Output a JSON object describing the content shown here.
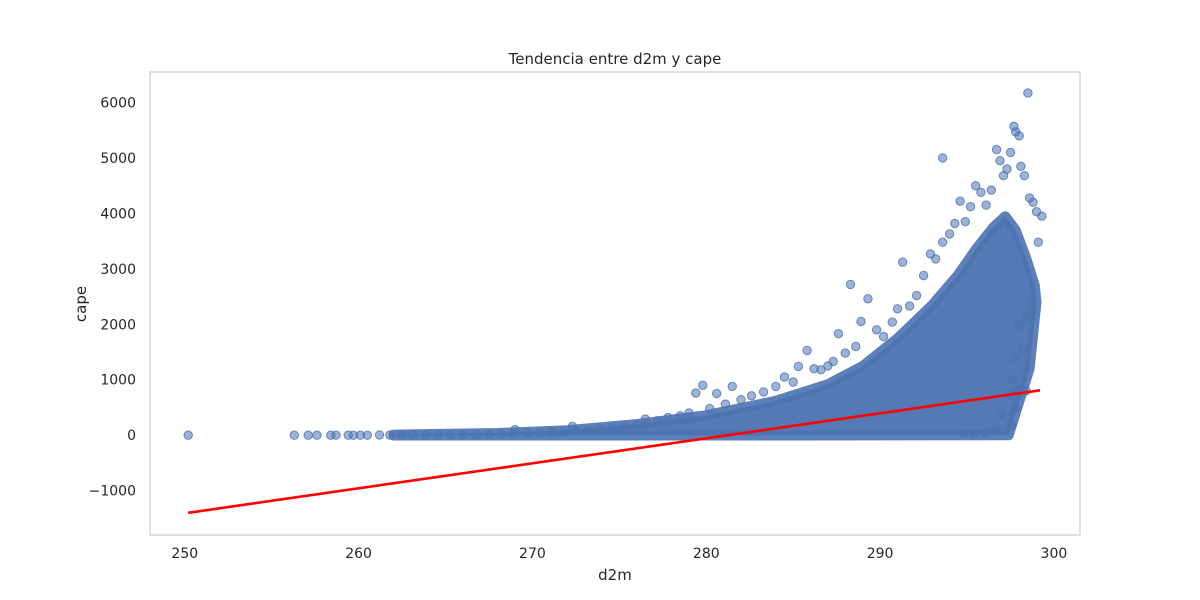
{
  "chart_data": {
    "type": "scatter",
    "title": "Tendencia entre d2m y cape",
    "xlabel": "d2m",
    "ylabel": "cape",
    "xlim": [
      248,
      301.5
    ],
    "ylim": [
      -1800,
      6550
    ],
    "xticks": [
      250,
      260,
      270,
      280,
      290,
      300
    ],
    "yticks": [
      -1000,
      0,
      1000,
      2000,
      3000,
      4000,
      5000,
      6000
    ],
    "xtick_labels": [
      "250",
      "260",
      "270",
      "280",
      "290",
      "300"
    ],
    "ytick_labels": [
      "−1000",
      "0",
      "1000",
      "2000",
      "3000",
      "4000",
      "5000",
      "6000"
    ],
    "grid": false,
    "colors": {
      "points": "#4c72b0",
      "trend": "#ff0000",
      "frame": "#cccccc",
      "text": "#262626"
    },
    "series": [
      {
        "kind": "points",
        "points": [
          [
            250.2,
            0
          ],
          [
            256.3,
            0
          ],
          [
            257.1,
            0
          ],
          [
            257.6,
            0
          ],
          [
            258.4,
            0
          ],
          [
            258.7,
            0
          ],
          [
            259.4,
            0
          ],
          [
            259.7,
            0
          ],
          [
            260.1,
            0
          ],
          [
            260.5,
            0
          ],
          [
            261.2,
            5
          ],
          [
            261.8,
            3
          ],
          [
            262.5,
            8
          ],
          [
            263.1,
            10
          ],
          [
            263.9,
            6
          ],
          [
            264.6,
            12
          ],
          [
            265.3,
            9
          ],
          [
            266.0,
            15
          ],
          [
            266.8,
            11
          ],
          [
            267.5,
            20
          ],
          [
            268.2,
            18
          ],
          [
            268.9,
            25
          ],
          [
            269.0,
            100
          ],
          [
            269.7,
            30
          ],
          [
            270.4,
            40
          ],
          [
            271.1,
            55
          ],
          [
            271.8,
            60
          ],
          [
            272.3,
            160
          ],
          [
            272.5,
            75
          ],
          [
            273.2,
            90
          ],
          [
            273.9,
            110
          ],
          [
            274.6,
            130
          ],
          [
            275.3,
            150
          ],
          [
            276.0,
            190
          ],
          [
            276.5,
            290
          ],
          [
            277.2,
            260
          ],
          [
            277.8,
            320
          ],
          [
            278.5,
            350
          ],
          [
            279.0,
            400
          ],
          [
            279.4,
            760
          ],
          [
            279.8,
            900
          ],
          [
            280.2,
            480
          ],
          [
            280.6,
            750
          ],
          [
            281.1,
            560
          ],
          [
            281.5,
            880
          ],
          [
            282.0,
            640
          ],
          [
            282.6,
            710
          ],
          [
            283.3,
            780
          ],
          [
            284.0,
            880
          ],
          [
            284.5,
            1050
          ],
          [
            285.0,
            960
          ],
          [
            285.3,
            1240
          ],
          [
            285.8,
            1530
          ],
          [
            286.2,
            1200
          ],
          [
            286.6,
            1180
          ],
          [
            287.0,
            1250
          ],
          [
            287.3,
            1330
          ],
          [
            287.6,
            1830
          ],
          [
            288.0,
            1480
          ],
          [
            288.3,
            2720
          ],
          [
            288.6,
            1600
          ],
          [
            288.9,
            2050
          ],
          [
            289.3,
            2460
          ],
          [
            289.8,
            1900
          ],
          [
            290.2,
            1780
          ],
          [
            290.7,
            2040
          ],
          [
            291.0,
            2280
          ],
          [
            291.3,
            3120
          ],
          [
            291.7,
            2330
          ],
          [
            292.1,
            2520
          ],
          [
            292.5,
            2880
          ],
          [
            292.9,
            3270
          ],
          [
            293.2,
            3180
          ],
          [
            293.6,
            3480
          ],
          [
            293.6,
            5000
          ],
          [
            294.0,
            3630
          ],
          [
            294.3,
            3820
          ],
          [
            294.6,
            4220
          ],
          [
            294.9,
            3850
          ],
          [
            295.2,
            4120
          ],
          [
            295.5,
            4500
          ],
          [
            295.8,
            4380
          ],
          [
            296.1,
            4150
          ],
          [
            296.4,
            4420
          ],
          [
            296.7,
            5150
          ],
          [
            296.9,
            4950
          ],
          [
            297.1,
            4680
          ],
          [
            297.3,
            4800
          ],
          [
            297.5,
            5100
          ],
          [
            297.7,
            5570
          ],
          [
            297.8,
            5470
          ],
          [
            298.0,
            5400
          ],
          [
            298.1,
            4850
          ],
          [
            298.3,
            4680
          ],
          [
            298.5,
            6170
          ],
          [
            298.6,
            4280
          ],
          [
            298.8,
            4200
          ],
          [
            299.0,
            4030
          ],
          [
            299.3,
            3950
          ],
          [
            299.1,
            3480
          ],
          [
            298.7,
            2330
          ],
          [
            298.4,
            2120
          ],
          [
            298.0,
            1980
          ],
          [
            297.8,
            1390
          ],
          [
            298.2,
            1550
          ],
          [
            297.6,
            1000
          ],
          [
            297.9,
            830
          ],
          [
            298.4,
            800
          ],
          [
            297.5,
            720
          ],
          [
            297.8,
            500
          ],
          [
            297.0,
            380
          ],
          [
            297.6,
            180
          ],
          [
            296.6,
            90
          ],
          [
            296.1,
            40
          ],
          [
            295.4,
            20
          ],
          [
            294.8,
            30
          ]
        ]
      },
      {
        "kind": "trend",
        "points": [
          [
            250.2,
            -1400
          ],
          [
            299.2,
            810
          ]
        ]
      }
    ]
  }
}
